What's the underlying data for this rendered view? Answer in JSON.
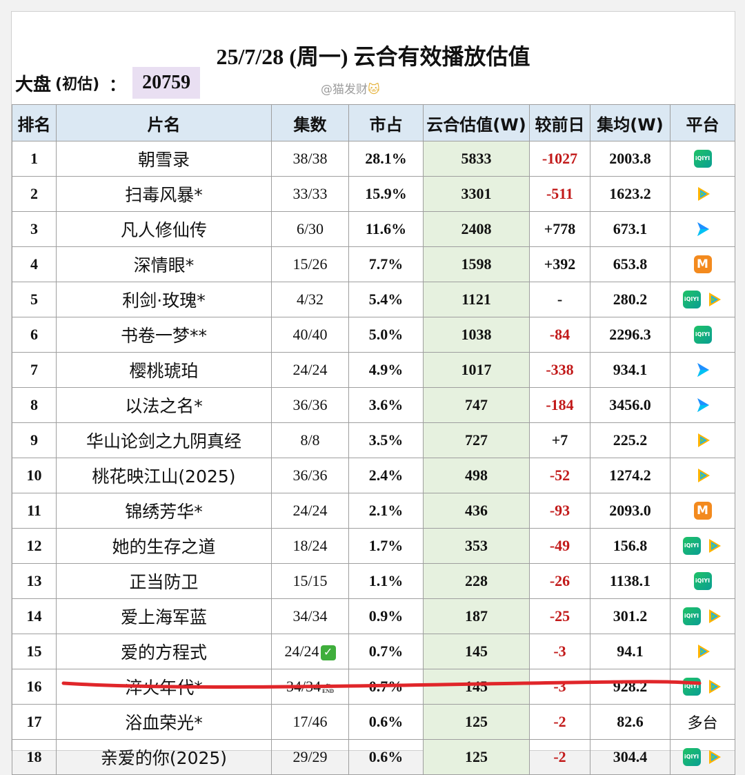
{
  "title": "25/7/28 (周一) 云合有效播放估值",
  "dapan": {
    "label": "大盘",
    "paren": "(初估)",
    "colon": "：",
    "value": "20759"
  },
  "watermark": {
    "text": "@猫发财",
    "icon": "cat-face-icon"
  },
  "headers": [
    "排名",
    "片名",
    "集数",
    "市占",
    "云合估值(W)",
    "较前日",
    "集均(W)",
    "平台"
  ],
  "colors": {
    "header_bg": "#dbe8f3",
    "value_bg": "#e6f1df",
    "negative": "#c21a1a",
    "dapan_bg": "#e9dff2",
    "underline": "#e0262a"
  },
  "rows": [
    {
      "rank": "1",
      "name": "朝雪录",
      "episodes": "38/38",
      "share": "28.1%",
      "value": "5833",
      "change": "-1027",
      "avg": "2003.8",
      "platforms": [
        "iqiyi"
      ]
    },
    {
      "rank": "2",
      "name": "扫毒风暴*",
      "episodes": "33/33",
      "share": "15.9%",
      "value": "3301",
      "change": "-511",
      "avg": "1623.2",
      "platforms": [
        "tencent"
      ]
    },
    {
      "rank": "3",
      "name": "凡人修仙传",
      "episodes": "6/30",
      "share": "11.6%",
      "value": "2408",
      "change": "+778",
      "avg": "673.1",
      "platforms": [
        "youku"
      ]
    },
    {
      "rank": "4",
      "name": "深情眼*",
      "episodes": "15/26",
      "share": "7.7%",
      "value": "1598",
      "change": "+392",
      "avg": "653.8",
      "platforms": [
        "mango"
      ]
    },
    {
      "rank": "5",
      "name": "利剑·玫瑰*",
      "episodes": "4/32",
      "share": "5.4%",
      "value": "1121",
      "change": "-",
      "avg": "280.2",
      "platforms": [
        "iqiyi",
        "tencent"
      ]
    },
    {
      "rank": "6",
      "name": "书卷一梦**",
      "episodes": "40/40",
      "share": "5.0%",
      "value": "1038",
      "change": "-84",
      "avg": "2296.3",
      "platforms": [
        "iqiyi"
      ]
    },
    {
      "rank": "7",
      "name": "樱桃琥珀",
      "episodes": "24/24",
      "share": "4.9%",
      "value": "1017",
      "change": "-338",
      "avg": "934.1",
      "platforms": [
        "youku"
      ]
    },
    {
      "rank": "8",
      "name": "以法之名*",
      "episodes": "36/36",
      "share": "3.6%",
      "value": "747",
      "change": "-184",
      "avg": "3456.0",
      "platforms": [
        "youku"
      ]
    },
    {
      "rank": "9",
      "name": "华山论剑之九阴真经",
      "episodes": "8/8",
      "share": "3.5%",
      "value": "727",
      "change": "+7",
      "avg": "225.2",
      "platforms": [
        "tencent"
      ]
    },
    {
      "rank": "10",
      "name": "桃花映江山(2025)",
      "episodes": "36/36",
      "share": "2.4%",
      "value": "498",
      "change": "-52",
      "avg": "1274.2",
      "platforms": [
        "tencent"
      ]
    },
    {
      "rank": "11",
      "name": "锦绣芳华*",
      "episodes": "24/24",
      "share": "2.1%",
      "value": "436",
      "change": "-93",
      "avg": "2093.0",
      "platforms": [
        "mango"
      ]
    },
    {
      "rank": "12",
      "name": "她的生存之道",
      "episodes": "18/24",
      "share": "1.7%",
      "value": "353",
      "change": "-49",
      "avg": "156.8",
      "platforms": [
        "iqiyi",
        "tencent"
      ]
    },
    {
      "rank": "13",
      "name": "正当防卫",
      "episodes": "15/15",
      "share": "1.1%",
      "value": "228",
      "change": "-26",
      "avg": "1138.1",
      "platforms": [
        "iqiyi"
      ]
    },
    {
      "rank": "14",
      "name": "爱上海军蓝",
      "episodes": "34/34",
      "share": "0.9%",
      "value": "187",
      "change": "-25",
      "avg": "301.2",
      "platforms": [
        "iqiyi",
        "tencent"
      ]
    },
    {
      "rank": "15",
      "name": "爱的方程式",
      "episodes": "24/24",
      "episode_badge": "check",
      "share": "0.7%",
      "value": "145",
      "change": "-3",
      "avg": "94.1",
      "platforms": [
        "tencent"
      ]
    },
    {
      "rank": "16",
      "name": "淬火年代*",
      "episodes": "34/34",
      "episode_badge": "end",
      "share": "0.7%",
      "value": "145",
      "change": "-3",
      "avg": "928.2",
      "platforms": [
        "iqiyi",
        "tencent"
      ],
      "underlined": true
    },
    {
      "rank": "17",
      "name": "浴血荣光*",
      "episodes": "17/46",
      "share": "0.6%",
      "value": "125",
      "change": "-2",
      "avg": "82.6",
      "platforms": [],
      "platform_text": "多台"
    },
    {
      "rank": "18",
      "name": "亲爱的你(2025)",
      "episodes": "29/29",
      "share": "0.6%",
      "value": "125",
      "change": "-2",
      "avg": "304.4",
      "platforms": [
        "iqiyi",
        "tencent"
      ]
    }
  ]
}
